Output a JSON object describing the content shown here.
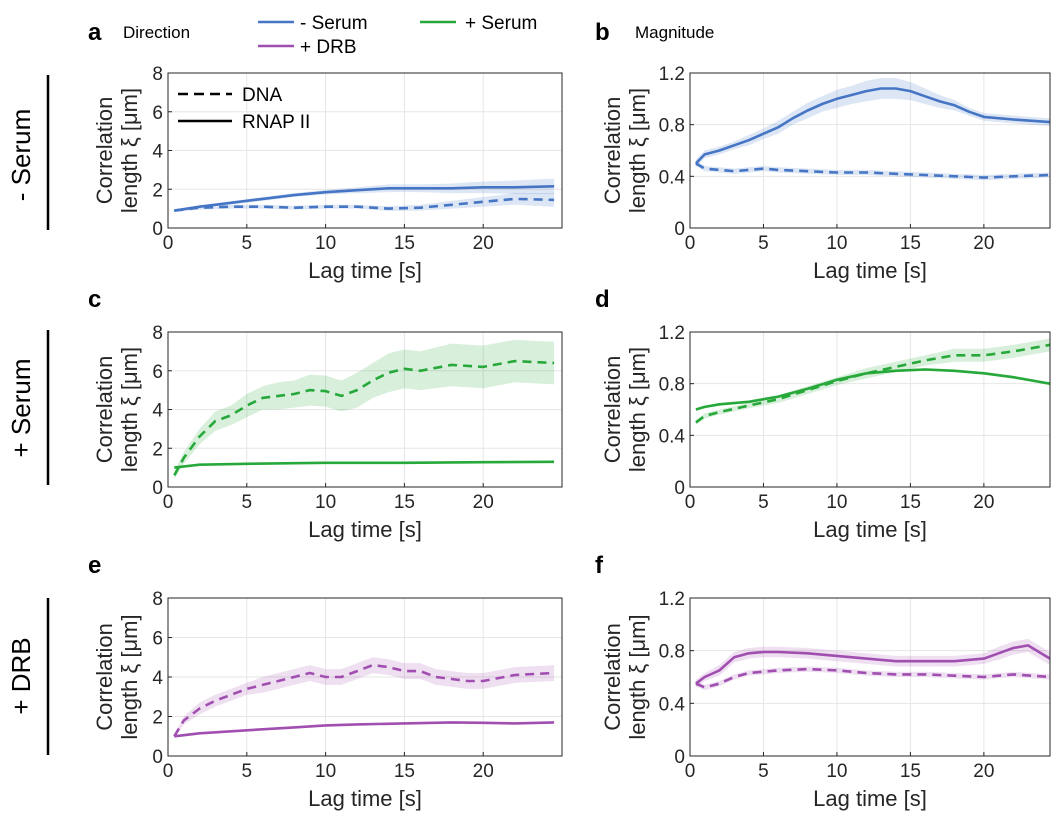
{
  "colors": {
    "minus_serum": "#4575c4",
    "plus_serum": "#27a83a",
    "plus_drb": "#a04fb0"
  },
  "row_labels": [
    "- Serum",
    "+ Serum",
    "+ DRB"
  ],
  "column_titles": {
    "a": "Direction",
    "b": "Magnitude"
  },
  "legend": {
    "conditions": [
      "- Serum",
      "+ Serum",
      "+ DRB"
    ],
    "styles": [
      "DNA",
      "RNAP II"
    ]
  },
  "chart_data": [
    {
      "panel": "a",
      "type": "line",
      "title": "Direction",
      "condition": "- Serum",
      "xlabel": "Lag time [s]",
      "ylabel": [
        "Correlation",
        "length ξ [μm]"
      ],
      "xlim": [
        0,
        25
      ],
      "ylim": [
        0,
        8
      ],
      "xticks": [
        0,
        5,
        10,
        15,
        20
      ],
      "yticks": [
        0,
        2,
        4,
        6,
        8
      ],
      "grid": true,
      "series": [
        {
          "name": "DNA",
          "style": "dashed",
          "x": [
            0.4,
            2,
            4,
            6,
            8,
            10,
            12,
            14,
            16,
            18,
            20,
            22,
            24.5
          ],
          "y": [
            0.9,
            1.05,
            1.1,
            1.1,
            1.05,
            1.1,
            1.1,
            1.0,
            1.05,
            1.2,
            1.35,
            1.5,
            1.45
          ],
          "band": [
            0.08,
            0.1,
            0.1,
            0.1,
            0.1,
            0.1,
            0.1,
            0.12,
            0.15,
            0.2,
            0.25,
            0.3,
            0.35
          ]
        },
        {
          "name": "RNAP II",
          "style": "solid",
          "x": [
            0.4,
            2,
            4,
            6,
            8,
            10,
            12,
            14,
            16,
            18,
            20,
            22,
            24.5
          ],
          "y": [
            0.9,
            1.1,
            1.3,
            1.5,
            1.7,
            1.85,
            1.95,
            2.05,
            2.05,
            2.05,
            2.1,
            2.1,
            2.15
          ],
          "band": [
            0.05,
            0.05,
            0.08,
            0.1,
            0.1,
            0.12,
            0.15,
            0.2,
            0.2,
            0.25,
            0.3,
            0.35,
            0.4
          ]
        }
      ]
    },
    {
      "panel": "b",
      "type": "line",
      "title": "Magnitude",
      "condition": "- Serum",
      "xlabel": "Lag time [s]",
      "ylabel": [
        "Correlation",
        "length ξ [μm]"
      ],
      "xlim": [
        0,
        24.5
      ],
      "ylim": [
        0,
        1.2
      ],
      "xticks": [
        0,
        5,
        10,
        15,
        20
      ],
      "yticks": [
        0,
        0.4,
        0.8,
        1.2
      ],
      "grid": true,
      "series": [
        {
          "name": "DNA",
          "style": "dashed",
          "x": [
            0.4,
            1,
            2,
            3,
            4,
            5,
            6,
            8,
            10,
            12,
            14,
            16,
            18,
            20,
            22,
            24.5
          ],
          "y": [
            0.5,
            0.46,
            0.45,
            0.44,
            0.45,
            0.46,
            0.45,
            0.44,
            0.43,
            0.43,
            0.42,
            0.41,
            0.4,
            0.39,
            0.4,
            0.41
          ],
          "band": [
            0.02,
            0.02,
            0.02,
            0.02,
            0.02,
            0.02,
            0.02,
            0.02,
            0.02,
            0.02,
            0.02,
            0.02,
            0.02,
            0.02,
            0.02,
            0.02
          ]
        },
        {
          "name": "RNAP II",
          "style": "solid",
          "x": [
            0.4,
            1,
            2,
            3,
            4,
            5,
            6,
            7,
            8,
            9,
            10,
            11,
            12,
            13,
            14,
            15,
            16,
            17,
            18,
            19,
            20,
            22,
            24.5
          ],
          "y": [
            0.5,
            0.57,
            0.6,
            0.64,
            0.68,
            0.73,
            0.78,
            0.85,
            0.91,
            0.96,
            1.0,
            1.03,
            1.06,
            1.08,
            1.08,
            1.06,
            1.02,
            0.98,
            0.95,
            0.9,
            0.86,
            0.84,
            0.82
          ],
          "band": [
            0.03,
            0.03,
            0.03,
            0.03,
            0.04,
            0.04,
            0.05,
            0.05,
            0.06,
            0.06,
            0.07,
            0.07,
            0.08,
            0.08,
            0.08,
            0.07,
            0.06,
            0.05,
            0.04,
            0.03,
            0.03,
            0.03,
            0.03
          ]
        }
      ]
    },
    {
      "panel": "c",
      "type": "line",
      "condition": "+ Serum",
      "xlabel": "Lag time [s]",
      "ylabel": [
        "Correlation",
        "length ξ [μm]"
      ],
      "xlim": [
        0,
        25
      ],
      "ylim": [
        0,
        8
      ],
      "xticks": [
        0,
        5,
        10,
        15,
        20
      ],
      "yticks": [
        0,
        2,
        4,
        6,
        8
      ],
      "grid": true,
      "series": [
        {
          "name": "DNA",
          "style": "dashed",
          "x": [
            0.4,
            1,
            2,
            3,
            4,
            5,
            6,
            7,
            8,
            9,
            10,
            11,
            12,
            13,
            14,
            15,
            16,
            18,
            20,
            22,
            24.5
          ],
          "y": [
            0.6,
            1.5,
            2.6,
            3.4,
            3.7,
            4.2,
            4.6,
            4.7,
            4.8,
            5.0,
            4.95,
            4.7,
            5.0,
            5.5,
            5.9,
            6.1,
            6.0,
            6.3,
            6.2,
            6.5,
            6.4
          ],
          "band": [
            0.2,
            0.3,
            0.4,
            0.5,
            0.5,
            0.6,
            0.6,
            0.7,
            0.7,
            0.8,
            0.8,
            0.8,
            0.9,
            0.9,
            1.0,
            1.0,
            1.0,
            1.1,
            1.1,
            1.1,
            1.1
          ]
        },
        {
          "name": "RNAP II",
          "style": "solid",
          "x": [
            0.4,
            2,
            5,
            10,
            15,
            20,
            24.5
          ],
          "y": [
            1.0,
            1.15,
            1.2,
            1.25,
            1.25,
            1.28,
            1.3
          ],
          "band": [
            0.05,
            0.05,
            0.05,
            0.05,
            0.05,
            0.05,
            0.05
          ]
        }
      ]
    },
    {
      "panel": "d",
      "type": "line",
      "condition": "+ Serum",
      "xlabel": "Lag time [s]",
      "ylabel": [
        "Correlation",
        "length ξ [μm]"
      ],
      "xlim": [
        0,
        24.5
      ],
      "ylim": [
        0,
        1.2
      ],
      "xticks": [
        0,
        5,
        10,
        15,
        20
      ],
      "yticks": [
        0,
        0.4,
        0.8,
        1.2
      ],
      "grid": true,
      "series": [
        {
          "name": "DNA",
          "style": "dashed",
          "x": [
            0.4,
            1,
            2,
            4,
            6,
            8,
            10,
            12,
            14,
            16,
            18,
            20,
            22,
            24.5
          ],
          "y": [
            0.5,
            0.55,
            0.58,
            0.63,
            0.68,
            0.75,
            0.82,
            0.88,
            0.93,
            0.98,
            1.02,
            1.02,
            1.05,
            1.1
          ],
          "band": [
            0.02,
            0.02,
            0.02,
            0.02,
            0.03,
            0.03,
            0.03,
            0.04,
            0.04,
            0.04,
            0.05,
            0.05,
            0.05,
            0.05
          ]
        },
        {
          "name": "RNAP II",
          "style": "solid",
          "x": [
            0.4,
            1,
            2,
            4,
            6,
            8,
            10,
            12,
            14,
            16,
            18,
            20,
            22,
            24.5
          ],
          "y": [
            0.6,
            0.62,
            0.64,
            0.66,
            0.7,
            0.76,
            0.83,
            0.88,
            0.9,
            0.91,
            0.9,
            0.88,
            0.85,
            0.8
          ],
          "band": [
            0.01,
            0.01,
            0.01,
            0.01,
            0.01,
            0.01,
            0.01,
            0.01,
            0.01,
            0.01,
            0.01,
            0.01,
            0.01,
            0.01
          ]
        }
      ]
    },
    {
      "panel": "e",
      "type": "line",
      "condition": "+ DRB",
      "xlabel": "Lag time [s]",
      "ylabel": [
        "Correlation",
        "length ξ [μm]"
      ],
      "xlim": [
        0,
        25
      ],
      "ylim": [
        0,
        8
      ],
      "xticks": [
        0,
        5,
        10,
        15,
        20
      ],
      "yticks": [
        0,
        2,
        4,
        6,
        8
      ],
      "grid": true,
      "series": [
        {
          "name": "DNA",
          "style": "dashed",
          "x": [
            0.4,
            1,
            2,
            3,
            4,
            5,
            6,
            7,
            8,
            9,
            10,
            11,
            12,
            13,
            14,
            15,
            16,
            17,
            18,
            19,
            20,
            22,
            24.5
          ],
          "y": [
            1.0,
            1.8,
            2.4,
            2.8,
            3.1,
            3.4,
            3.6,
            3.8,
            4.0,
            4.2,
            4.0,
            4.0,
            4.3,
            4.6,
            4.5,
            4.3,
            4.3,
            4.0,
            3.9,
            3.8,
            3.8,
            4.1,
            4.2
          ],
          "band": [
            0.1,
            0.2,
            0.3,
            0.3,
            0.3,
            0.3,
            0.4,
            0.4,
            0.4,
            0.4,
            0.4,
            0.4,
            0.4,
            0.4,
            0.4,
            0.4,
            0.4,
            0.4,
            0.4,
            0.4,
            0.4,
            0.4,
            0.4
          ]
        },
        {
          "name": "RNAP II",
          "style": "solid",
          "x": [
            0.4,
            2,
            5,
            8,
            10,
            12,
            15,
            18,
            20,
            22,
            24.5
          ],
          "y": [
            1.0,
            1.15,
            1.3,
            1.45,
            1.55,
            1.6,
            1.65,
            1.7,
            1.68,
            1.65,
            1.7
          ],
          "band": [
            0.05,
            0.05,
            0.05,
            0.05,
            0.05,
            0.05,
            0.05,
            0.05,
            0.05,
            0.05,
            0.05
          ]
        }
      ]
    },
    {
      "panel": "f",
      "type": "line",
      "condition": "+ DRB",
      "xlabel": "Lag time [s]",
      "ylabel": [
        "Correlation",
        "length ξ [μm]"
      ],
      "xlim": [
        0,
        24.5
      ],
      "ylim": [
        0,
        1.2
      ],
      "xticks": [
        0,
        5,
        10,
        15,
        20
      ],
      "yticks": [
        0,
        0.4,
        0.8,
        1.2
      ],
      "grid": true,
      "series": [
        {
          "name": "DNA",
          "style": "dashed",
          "x": [
            0.4,
            1,
            2,
            3,
            4,
            5,
            6,
            8,
            10,
            12,
            14,
            16,
            18,
            20,
            22,
            24.5
          ],
          "y": [
            0.55,
            0.52,
            0.55,
            0.6,
            0.63,
            0.64,
            0.65,
            0.66,
            0.65,
            0.63,
            0.62,
            0.62,
            0.61,
            0.6,
            0.62,
            0.6
          ],
          "band": [
            0.02,
            0.02,
            0.02,
            0.02,
            0.02,
            0.02,
            0.02,
            0.02,
            0.02,
            0.02,
            0.02,
            0.02,
            0.02,
            0.02,
            0.02,
            0.02
          ]
        },
        {
          "name": "RNAP II",
          "style": "solid",
          "x": [
            0.4,
            1,
            2,
            3,
            4,
            5,
            6,
            8,
            10,
            12,
            14,
            16,
            18,
            20,
            21,
            22,
            23,
            24.5
          ],
          "y": [
            0.55,
            0.6,
            0.65,
            0.75,
            0.78,
            0.79,
            0.79,
            0.78,
            0.76,
            0.74,
            0.72,
            0.72,
            0.72,
            0.74,
            0.78,
            0.82,
            0.84,
            0.74
          ],
          "band": [
            0.03,
            0.03,
            0.04,
            0.04,
            0.04,
            0.04,
            0.04,
            0.04,
            0.04,
            0.04,
            0.04,
            0.04,
            0.04,
            0.04,
            0.05,
            0.05,
            0.05,
            0.05
          ]
        }
      ]
    }
  ]
}
